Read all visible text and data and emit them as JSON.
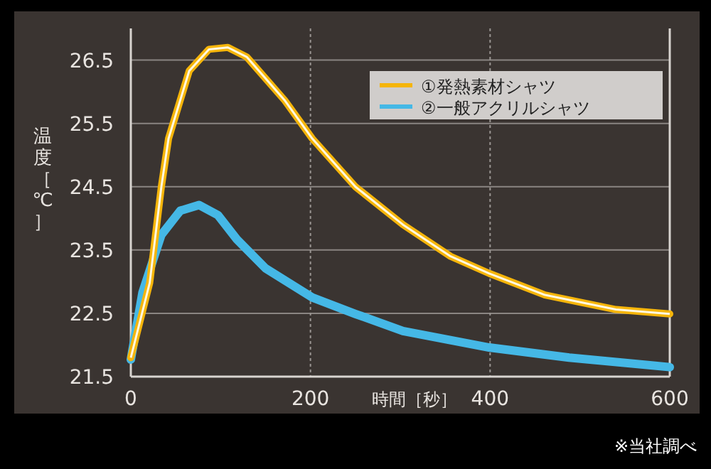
{
  "chart_data": {
    "type": "line",
    "xlabel": "時間［秒］",
    "ylabel": "温度［℃］",
    "annotations": [
      "※当社調べ"
    ],
    "xlim": [
      0,
      600
    ],
    "xticks": [
      0,
      200,
      400,
      600
    ],
    "ylim": [
      21.5,
      27
    ],
    "yticks": [
      21.5,
      22.5,
      23.5,
      24.5,
      25.5,
      26.5
    ],
    "grid": true,
    "legend": "top right",
    "line_style": "solid",
    "series": [
      {
        "name": "①発熱素材シャツ",
        "color": "#f5b50a",
        "x": [
          0,
          21,
          34,
          42,
          65,
          87,
          108,
          129,
          171,
          202,
          250,
          303,
          356,
          399,
          461,
          540,
          600
        ],
        "values": [
          21.8,
          22.98,
          24.5,
          25.26,
          26.33,
          26.67,
          26.7,
          26.55,
          25.87,
          25.26,
          24.5,
          23.9,
          23.4,
          23.13,
          22.79,
          22.56,
          22.49
        ]
      },
      {
        "name": "②一般アクリルシャツ",
        "color": "#45b8e6",
        "x": [
          0,
          13,
          34,
          55,
          76,
          97,
          118,
          150,
          202,
          250,
          303,
          399,
          488,
          600
        ],
        "values": [
          21.77,
          22.83,
          23.74,
          24.12,
          24.21,
          24.05,
          23.67,
          23.21,
          22.75,
          22.49,
          22.22,
          21.96,
          21.8,
          21.65
        ]
      }
    ]
  }
}
